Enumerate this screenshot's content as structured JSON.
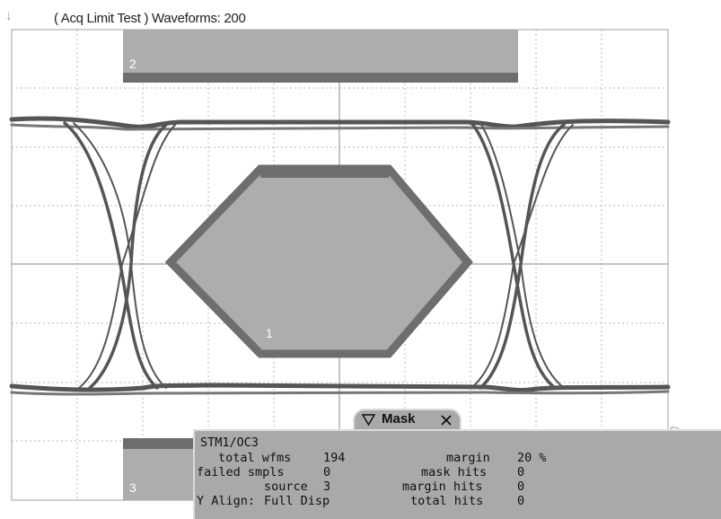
{
  "header": {
    "status_text": "( Acq Limit Test )  Waveforms: 200"
  },
  "masks": {
    "region_top": "2",
    "region_center": "1",
    "region_bottom": "3"
  },
  "mask_panel": {
    "title": "Mask",
    "standard": "STM1/OC3",
    "rows": {
      "total_wfms_label": "total wfms",
      "total_wfms_value": "194",
      "failed_smpls_label": "failed smpls",
      "failed_smpls_value": "0",
      "source_label": "source",
      "source_value": "3",
      "y_align_label": "Y Align:",
      "y_align_value": "Full Disp",
      "margin_label": "margin",
      "margin_value": "20 %",
      "mask_hits_label": "mask hits",
      "mask_hits_value": "0",
      "margin_hits_label": "margin hits",
      "margin_hits_value": "0",
      "total_hits_label": "total hits",
      "total_hits_value": "0"
    }
  },
  "icons": {
    "trigger_marker": "down-arrow-icon",
    "collapse": "triangle-down-icon",
    "close": "close-icon",
    "right_marker": "level-marker-icon"
  },
  "colors": {
    "mask_fill": "#adadad",
    "mask_border": "#6e6e6e",
    "grid_line": "#a0a0a0",
    "trace": "#555555",
    "panel_bg": "#a9a9a9"
  }
}
